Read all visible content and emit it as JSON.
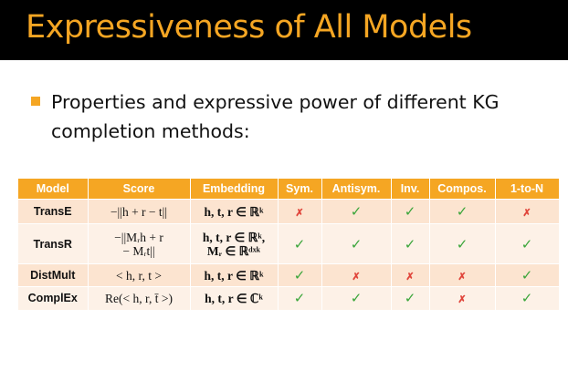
{
  "slide": {
    "title": "Expressiveness of All Models",
    "bullet": "Properties and expressive power of different KG completion methods:"
  },
  "table": {
    "headers": [
      "Model",
      "Score",
      "Embedding",
      "Sym.",
      "Antisym.",
      "Inv.",
      "Compos.",
      "1-to-N"
    ],
    "rows": [
      {
        "model": "TransE",
        "score": [
          "−||h + r − t||"
        ],
        "embedding": [
          "h, t, r ∈ ℝᵏ"
        ],
        "properties": [
          "✗",
          "✓",
          "✓",
          "✓",
          "✗"
        ]
      },
      {
        "model": "TransR",
        "score": [
          "−||Mᵣh + r",
          "− Mᵣt||"
        ],
        "embedding": [
          "h, t, r ∈ ℝᵏ,",
          "Mᵣ ∈ ℝᵈˣᵏ"
        ],
        "properties": [
          "✓",
          "✓",
          "✓",
          "✓",
          "✓"
        ]
      },
      {
        "model": "DistMult",
        "score": [
          "< h, r, t >"
        ],
        "embedding": [
          "h, t, r ∈ ℝᵏ"
        ],
        "properties": [
          "✓",
          "✗",
          "✗",
          "✗",
          "✓"
        ]
      },
      {
        "model": "ComplEx",
        "score": [
          "Re(< h, r, t̄ >)"
        ],
        "embedding": [
          "h, t, r ∈ ℂᵏ"
        ],
        "properties": [
          "✓",
          "✓",
          "✓",
          "✗",
          "✓"
        ]
      }
    ]
  },
  "colors": {
    "accent": "#f5a623",
    "check": "#3aa53a",
    "cross": "#e0443a"
  }
}
